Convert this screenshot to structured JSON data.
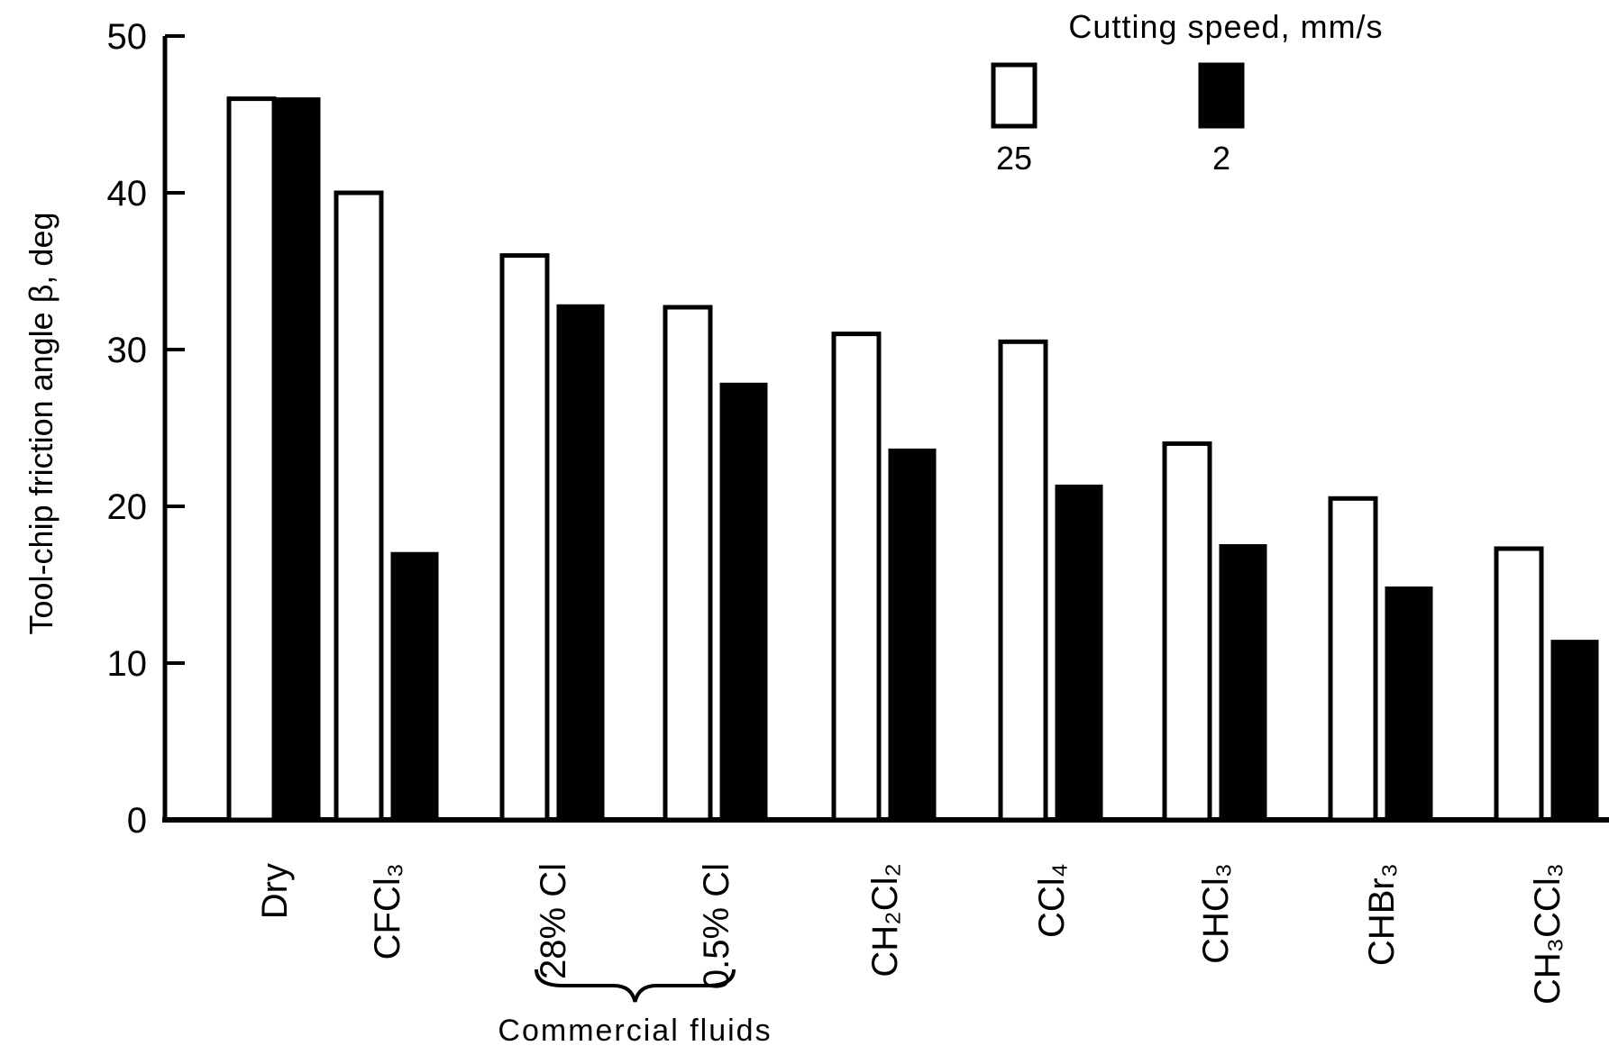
{
  "chart_data": {
    "type": "bar",
    "ylabel": "Tool-chip friction angle β, deg",
    "ylim": [
      0,
      50
    ],
    "yticks": [
      "0",
      "10",
      "20",
      "30",
      "40",
      "50"
    ],
    "categories": [
      "Dry",
      "CFCl₃",
      "28% Cl",
      "0.5% Cl",
      "CH₂Cl₂",
      "CCl₄",
      "CHCl₃",
      "CHBr₃",
      "CH₃CCl₃"
    ],
    "legend_title": "Cutting speed, mm/s",
    "legend_position": "top-right",
    "series": [
      {
        "name": "25",
        "fill": "#ffffff",
        "values": [
          46,
          40,
          36,
          32.7,
          31,
          30.5,
          24,
          20.5,
          17.3
        ]
      },
      {
        "name": "2",
        "fill": "#000000",
        "values": [
          46,
          17,
          32.8,
          27.8,
          23.6,
          21.3,
          17.5,
          14.8,
          11.4
        ]
      }
    ],
    "group_annotation": {
      "label": "Commercial fluids",
      "from_category": 2,
      "to_category": 3
    }
  }
}
